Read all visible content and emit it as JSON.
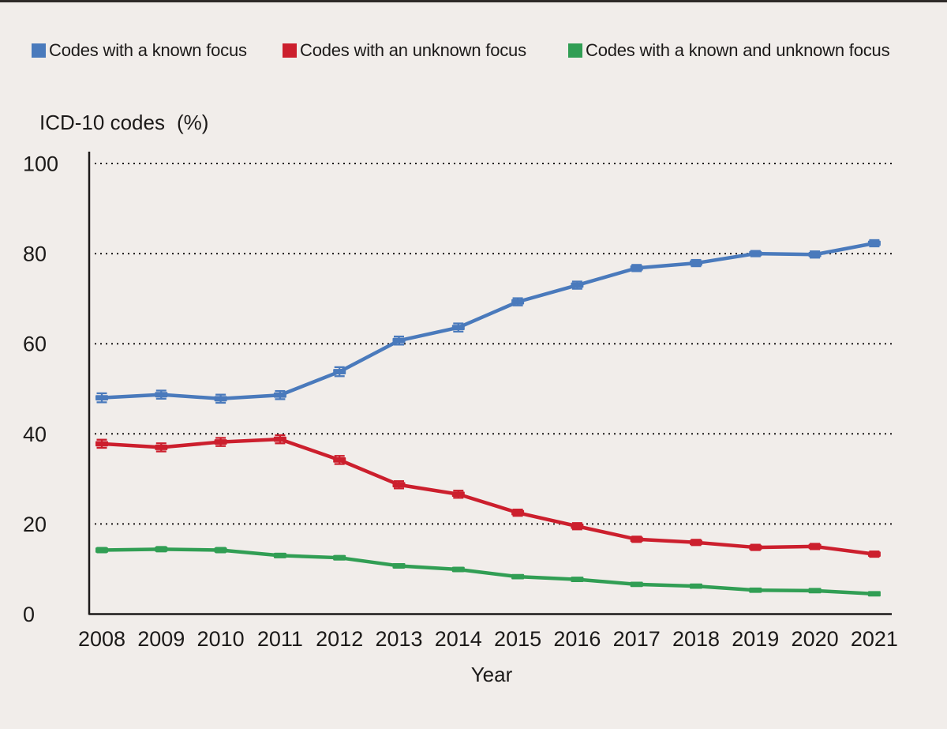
{
  "figure": {
    "background_color": "#f1edea",
    "top_rule_color": "#2e2a28",
    "text_color": "#1c1a19"
  },
  "chart_data": {
    "type": "line",
    "title": "",
    "xlabel": "Year",
    "ylabel": "ICD-10 codes",
    "ylabel_unit": "(%)",
    "x": [
      2008,
      2009,
      2010,
      2011,
      2012,
      2013,
      2014,
      2015,
      2016,
      2017,
      2018,
      2019,
      2020,
      2021
    ],
    "ylim": [
      0,
      100
    ],
    "yticks": [
      0,
      20,
      40,
      60,
      80,
      100
    ],
    "grid": "horizontal-dotted",
    "legend_position": "top-left-row",
    "error_bars": true,
    "series": [
      {
        "name": "Codes with a known focus",
        "color": "#4a7abc",
        "values": [
          48.0,
          48.7,
          47.8,
          48.6,
          53.8,
          60.7,
          63.6,
          69.3,
          73.0,
          76.8,
          77.9,
          80.0,
          79.8,
          82.3
        ],
        "error": [
          1.0,
          0.9,
          0.9,
          0.9,
          1.0,
          0.9,
          0.9,
          0.8,
          0.8,
          0.7,
          0.7,
          0.6,
          0.7,
          0.7
        ]
      },
      {
        "name": "Codes with an unknown focus",
        "color": "#cc1f2d",
        "values": [
          37.8,
          37.0,
          38.2,
          38.8,
          34.2,
          28.7,
          26.6,
          22.5,
          19.5,
          16.6,
          15.9,
          14.8,
          15.0,
          13.3
        ],
        "error": [
          0.9,
          0.9,
          0.9,
          0.9,
          0.9,
          0.8,
          0.8,
          0.7,
          0.7,
          0.6,
          0.6,
          0.6,
          0.6,
          0.6
        ]
      },
      {
        "name": "Codes with a known and unknown focus",
        "color": "#319e54",
        "values": [
          14.2,
          14.4,
          14.2,
          13.0,
          12.5,
          10.7,
          9.9,
          8.3,
          7.7,
          6.6,
          6.2,
          5.3,
          5.2,
          4.5
        ],
        "error": [
          0.5,
          0.5,
          0.5,
          0.4,
          0.4,
          0.4,
          0.4,
          0.35,
          0.35,
          0.3,
          0.3,
          0.3,
          0.3,
          0.3
        ]
      }
    ]
  }
}
